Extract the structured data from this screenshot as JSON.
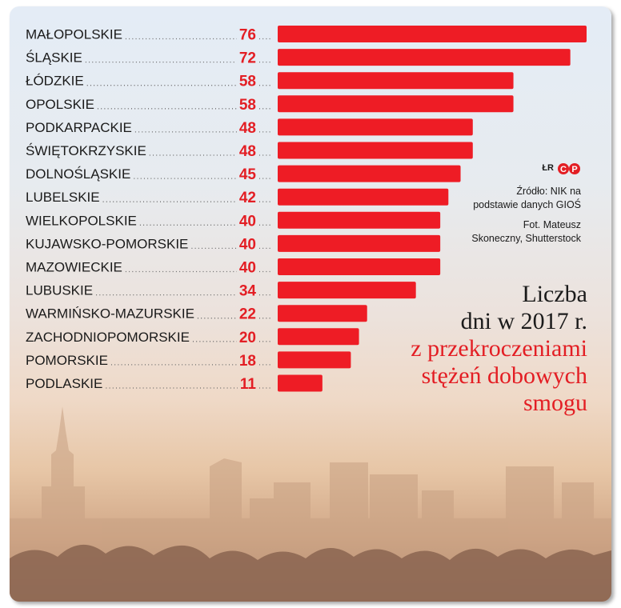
{
  "chart_data": {
    "type": "bar",
    "orientation": "horizontal",
    "categories": [
      "MAŁOPOLSKIE",
      "ŚLĄSKIE",
      "ŁÓDZKIE",
      "OPOLSKIE",
      "PODKARPACKIE",
      "ŚWIĘTOKRZYSKIE",
      "DOLNOŚLĄSKIE",
      "LUBELSKIE",
      "WIELKOPOLSKIE",
      "KUJAWSKO-POMORSKIE",
      "MAZOWIECKIE",
      "LUBUSKIE",
      "WARMIŃSKO-MAZURSKIE",
      "ZACHODNIOPOMORSKIE",
      "POMORSKIE",
      "PODLASKIE"
    ],
    "values": [
      76,
      72,
      58,
      58,
      48,
      48,
      45,
      42,
      40,
      40,
      40,
      34,
      22,
      20,
      18,
      11
    ],
    "title_lines": [
      "Liczba",
      "dni w 2017 r.",
      "z przekroczeniami",
      "stężeń dobowych",
      "smogu"
    ],
    "xlim": [
      0,
      76
    ],
    "bar_color": "#ee1c25",
    "value_color": "#e31e24",
    "grid": false,
    "legend": false
  },
  "credits": {
    "logo_text": "ŁR",
    "logo_icon": "cp-logo-icon",
    "source": [
      "Źródło: NIK na",
      "podstawie danych GIOŚ"
    ],
    "photo": [
      "Fot. Mateusz",
      "Skoneczny, Shutterstock"
    ]
  }
}
